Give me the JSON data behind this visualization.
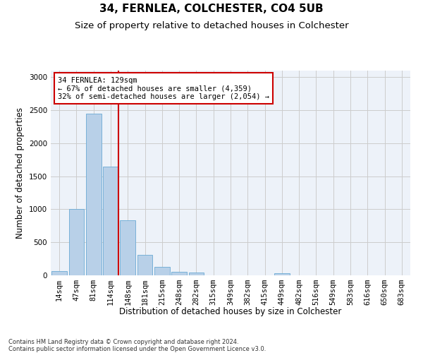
{
  "title_line1": "34, FERNLEA, COLCHESTER, CO4 5UB",
  "title_line2": "Size of property relative to detached houses in Colchester",
  "xlabel": "Distribution of detached houses by size in Colchester",
  "ylabel": "Number of detached properties",
  "footnote": "Contains HM Land Registry data © Crown copyright and database right 2024.\nContains public sector information licensed under the Open Government Licence v3.0.",
  "bin_labels": [
    "14sqm",
    "47sqm",
    "81sqm",
    "114sqm",
    "148sqm",
    "181sqm",
    "215sqm",
    "248sqm",
    "282sqm",
    "315sqm",
    "349sqm",
    "382sqm",
    "415sqm",
    "449sqm",
    "482sqm",
    "516sqm",
    "549sqm",
    "583sqm",
    "616sqm",
    "650sqm",
    "683sqm"
  ],
  "bar_values": [
    60,
    1000,
    2450,
    1650,
    830,
    310,
    125,
    50,
    45,
    0,
    0,
    0,
    0,
    30,
    0,
    0,
    0,
    0,
    0,
    0,
    0
  ],
  "bar_color": "#b8d0e8",
  "bar_edge_color": "#6aaad4",
  "vline_index": 3,
  "annotation_text": "34 FERNLEA: 129sqm\n← 67% of detached houses are smaller (4,359)\n32% of semi-detached houses are larger (2,054) →",
  "annotation_box_color": "#ffffff",
  "annotation_box_edge": "#cc0000",
  "vline_color": "#cc0000",
  "ylim": [
    0,
    3100
  ],
  "yticks": [
    0,
    500,
    1000,
    1500,
    2000,
    2500,
    3000
  ],
  "grid_color": "#cccccc",
  "bg_color": "#edf2f9",
  "title_fontsize": 11,
  "subtitle_fontsize": 9.5,
  "axis_label_fontsize": 8.5,
  "tick_fontsize": 7.5,
  "annotation_fontsize": 7.5
}
